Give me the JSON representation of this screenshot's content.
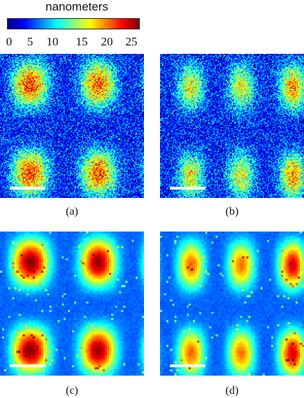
{
  "colorbar": {
    "title": "nanometers",
    "ticks": [
      "0",
      "5",
      "10",
      "15",
      "20",
      "25"
    ],
    "range": [
      0,
      25
    ],
    "colormap": [
      "#00008f",
      "#0000ff",
      "#0080ff",
      "#00ffff",
      "#80ff80",
      "#ffff00",
      "#ff8000",
      "#ff0000",
      "#800000"
    ]
  },
  "panels": [
    {
      "caption": "(a)",
      "style": "noisy reconstruction",
      "max_height_nm": 25
    },
    {
      "caption": "(b)",
      "style": "noisy reconstruction",
      "max_height_nm": 18
    },
    {
      "caption": "(c)",
      "style": "smoothed reconstruction",
      "max_height_nm": 25
    },
    {
      "caption": "(d)",
      "style": "smoothed reconstruction",
      "max_height_nm": 18
    }
  ]
}
